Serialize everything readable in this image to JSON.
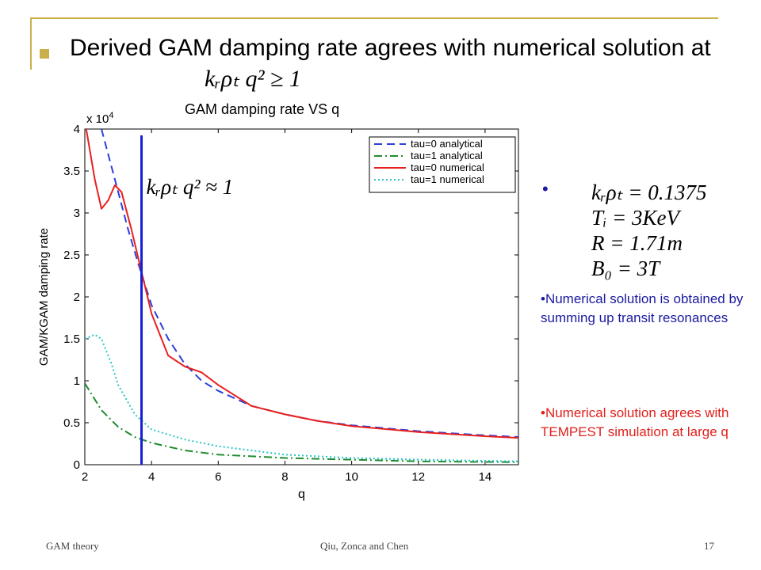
{
  "slide": {
    "title": "Derived GAM damping rate agrees with numerical solution at",
    "title_math": "kᵣρₜ q² ≥ 1"
  },
  "chart_data": {
    "type": "line",
    "title": "GAM damping rate VS q",
    "xlabel": "q",
    "ylabel": "GAM/KGAM damping rate",
    "y_multiplier": "x 10^4",
    "xlim": [
      2,
      15
    ],
    "ylim": [
      0,
      4
    ],
    "x_ticks": [
      2,
      4,
      6,
      8,
      10,
      12,
      14
    ],
    "y_ticks": [
      0,
      0.5,
      1,
      1.5,
      2,
      2.5,
      3,
      3.5,
      4
    ],
    "legend_position": "top-right",
    "annotation": {
      "text": "kᵣρₜ q² ≈ 1",
      "x": 3.7
    },
    "series": [
      {
        "name": "tau=0 analytical",
        "color": "#2b3fd8",
        "style": "dashed",
        "x": [
          2.5,
          2.8,
          3.0,
          3.3,
          3.6,
          4.0,
          4.5,
          5.0,
          5.5,
          6.0,
          7.0,
          8.0,
          9.0,
          10.0,
          12.0,
          14.0,
          15.0
        ],
        "y": [
          4.0,
          3.55,
          3.25,
          2.8,
          2.4,
          1.9,
          1.5,
          1.2,
          1.0,
          0.88,
          0.7,
          0.6,
          0.52,
          0.47,
          0.4,
          0.35,
          0.33
        ]
      },
      {
        "name": "tau=1 analytical",
        "color": "#1f8c2f",
        "style": "dashdot",
        "x": [
          2.0,
          2.5,
          3.0,
          3.5,
          4.0,
          5.0,
          6.0,
          8.0,
          10.0,
          12.0,
          15.0
        ],
        "y": [
          0.97,
          0.65,
          0.45,
          0.33,
          0.26,
          0.17,
          0.12,
          0.08,
          0.06,
          0.04,
          0.03
        ]
      },
      {
        "name": "tau=0 numerical",
        "color": "#e8201e",
        "style": "solid",
        "x": [
          2.0,
          2.3,
          2.5,
          2.7,
          2.9,
          3.1,
          3.4,
          3.7,
          4.0,
          4.5,
          5.0,
          5.5,
          6.0,
          7.0,
          8.0,
          9.0,
          10.0,
          12.0,
          14.0,
          15.0
        ],
        "y": [
          4.1,
          3.4,
          3.05,
          3.15,
          3.33,
          3.25,
          2.8,
          2.3,
          1.8,
          1.3,
          1.17,
          1.1,
          0.95,
          0.7,
          0.6,
          0.52,
          0.46,
          0.39,
          0.34,
          0.32
        ]
      },
      {
        "name": "tau=1 numerical",
        "color": "#29c4c8",
        "style": "dotted",
        "x": [
          2.0,
          2.3,
          2.5,
          2.8,
          3.0,
          3.5,
          4.0,
          5.0,
          6.0,
          8.0,
          10.0,
          12.0,
          15.0
        ],
        "y": [
          1.5,
          1.55,
          1.5,
          1.2,
          0.95,
          0.6,
          0.42,
          0.3,
          0.22,
          0.12,
          0.08,
          0.06,
          0.04
        ]
      }
    ]
  },
  "params": [
    "kᵣρₜ = 0.1375",
    "Tᵢ = 3KeV",
    "R = 1.71m",
    "B₀ = 3T"
  ],
  "notes": [
    {
      "text": "•Numerical solution is obtained by summing up transit resonances",
      "color": "#1a1aa0"
    },
    {
      "text": "•Numerical solution agrees with TEMPEST simulation at large q",
      "color": "#e0201c"
    }
  ],
  "footer": {
    "left": "GAM theory",
    "center": "Qiu, Zonca and Chen",
    "right": "17"
  }
}
